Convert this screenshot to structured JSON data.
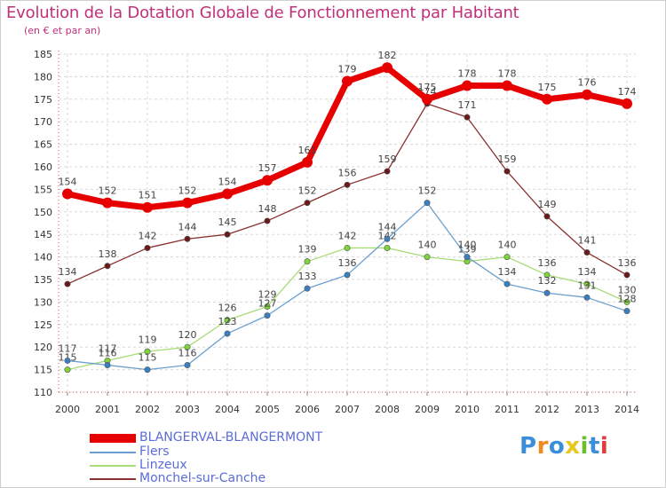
{
  "title": "Evolution de la Dotation Globale de Fonctionnement par Habitant",
  "subtitle": "(en € et par an)",
  "chart_data": {
    "type": "line",
    "title": "Evolution de la Dotation Globale de Fonctionnement par Habitant",
    "subtitle": "(en € et par an)",
    "x": [
      2000,
      2001,
      2002,
      2003,
      2004,
      2005,
      2006,
      2007,
      2008,
      2009,
      2010,
      2011,
      2012,
      2013,
      2014
    ],
    "ylim": [
      110,
      185
    ],
    "ytick_step": 5,
    "yticks": [
      110,
      115,
      120,
      125,
      130,
      135,
      140,
      145,
      150,
      155,
      160,
      165,
      170,
      175,
      180,
      185
    ],
    "grid": true,
    "legend_position": "bottom-left",
    "series": [
      {
        "name": "BLANGERVAL-BLANGERMONT",
        "color": "#e60000",
        "marker_color": "#e60000",
        "values": [
          154,
          152,
          151,
          152,
          154,
          157,
          161,
          179,
          182,
          175,
          178,
          178,
          175,
          176,
          174
        ]
      },
      {
        "name": "Flers",
        "color": "#6a9fd0",
        "marker_color": "#3a7fc0",
        "values": [
          117,
          116,
          115,
          116,
          123,
          127,
          133,
          136,
          144,
          152,
          140,
          134,
          132,
          131,
          128
        ]
      },
      {
        "name": "Linzeux",
        "color": "#a8dc78",
        "marker_color": "#7ed43a",
        "values": [
          115,
          117,
          119,
          120,
          126,
          129,
          139,
          142,
          142,
          140,
          139,
          140,
          136,
          134,
          130
        ]
      },
      {
        "name": "Monchel-sur-Canche",
        "color": "#8a3030",
        "marker_color": "#6a1a1a",
        "values": [
          134,
          138,
          142,
          144,
          145,
          148,
          152,
          156,
          159,
          174,
          171,
          159,
          149,
          141,
          136
        ]
      }
    ]
  },
  "legend": [
    {
      "label": "BLANGERVAL-BLANGERMONT",
      "color": "#e60000"
    },
    {
      "label": "Flers",
      "color": "#6a9fd0"
    },
    {
      "label": "Linzeux",
      "color": "#a8dc78"
    },
    {
      "label": "Monchel-sur-Canche",
      "color": "#8a3030"
    }
  ],
  "logo": {
    "text": "Proxiti"
  }
}
